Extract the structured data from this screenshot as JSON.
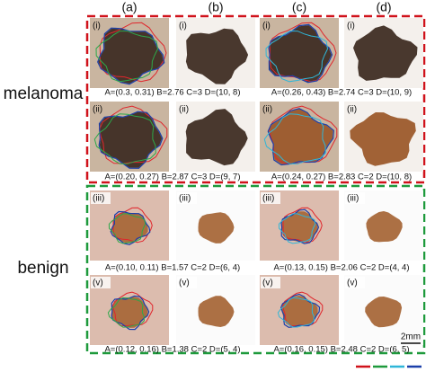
{
  "columns": [
    "(a)",
    "(b)",
    "(c)",
    "(d)"
  ],
  "groups": [
    {
      "label": "melanoma",
      "rows": [
        {
          "tag": "(i)",
          "captions": [
            "A=(0.3, 0.31) B=2.76 C=3 D=(10, 8)",
            "A=(0.26, 0.43) B=2.74 C=3 D=(10, 9)"
          ]
        },
        {
          "tag": "(ii)",
          "captions": [
            "A=(0.20, 0.27) B=2.87 C=3 D=(9, 7)",
            "A=(0.24, 0.27) B=2.83 C=2 D=(10, 8)"
          ]
        }
      ]
    },
    {
      "label": "benign",
      "rows": [
        {
          "tag": "(iii)",
          "captions": [
            "A=(0.10, 0.11) B=1.57 C=2 D=(6, 4)",
            "A=(0.13, 0.15) B=2.06 C=2 D=(4, 4)"
          ]
        },
        {
          "tag": "(v)",
          "captions": [
            "A=(0.12, 0.16) B=1.38 C=2 D=(5, 4)",
            "A=(0.16, 0.15) B=2.48 C=2 D=(6, 5)"
          ]
        }
      ]
    }
  ],
  "scale_bar": "2mm"
}
